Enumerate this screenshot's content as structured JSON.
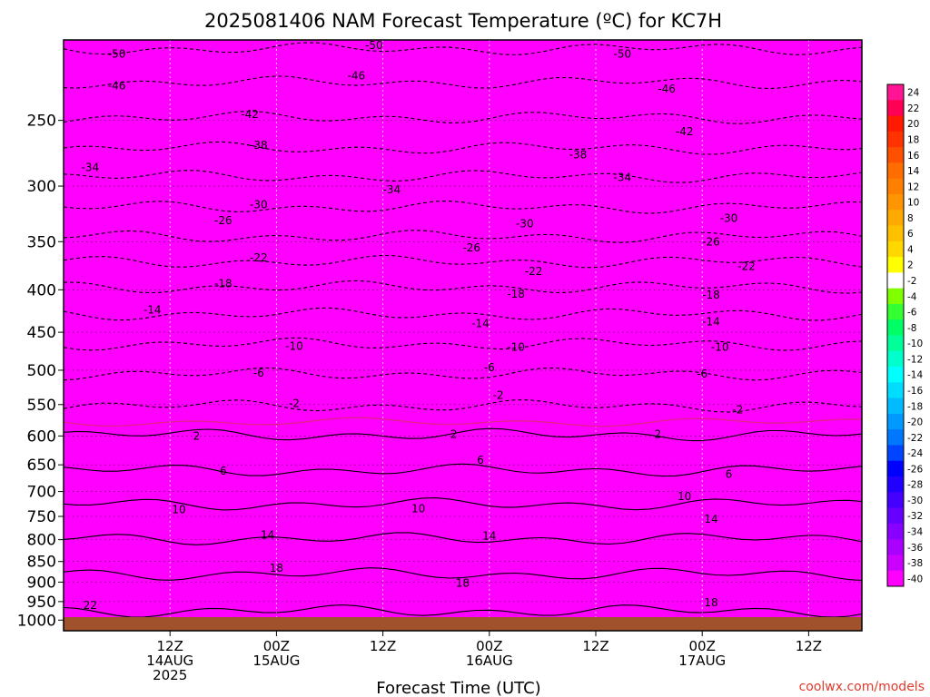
{
  "chart_data": {
    "type": "heatmap",
    "title": "2025081406 NAM Forecast Temperature (ºC) for KC7H",
    "xlabel": "Forecast Time (UTC)",
    "ylabel": "",
    "watermark": "coolwx.com/models",
    "y_axis": {
      "scale": "log",
      "units": "hPa",
      "range": [
        1030,
        200
      ],
      "ticks": [
        250,
        300,
        350,
        400,
        450,
        500,
        550,
        600,
        650,
        700,
        750,
        800,
        850,
        900,
        950,
        1000
      ]
    },
    "x_axis": {
      "range_hours": [
        -6,
        63
      ],
      "ticks": [
        {
          "hour": 6,
          "labels": [
            "12Z",
            "14AUG",
            "2025"
          ]
        },
        {
          "hour": 18,
          "labels": [
            "00Z",
            "15AUG"
          ]
        },
        {
          "hour": 30,
          "labels": [
            "12Z"
          ]
        },
        {
          "hour": 42,
          "labels": [
            "00Z",
            "16AUG"
          ]
        },
        {
          "hour": 54,
          "labels": [
            "12Z"
          ]
        },
        {
          "hour": 66,
          "labels": [
            "00Z",
            "17AUG"
          ]
        },
        {
          "hour": 78,
          "labels": [
            "12Z"
          ]
        }
      ]
    },
    "x_axis_start_hour": -6,
    "x_axis_end_hour": 84,
    "colorbar": {
      "labels": [
        "24",
        "22",
        "20",
        "18",
        "16",
        "14",
        "12",
        "10",
        "8",
        "6",
        "4",
        "2",
        "-2",
        "-4",
        "-6",
        "-8",
        "-10",
        "-12",
        "-14",
        "-16",
        "-18",
        "-20",
        "-22",
        "-24",
        "-26",
        "-28",
        "-30",
        "-32",
        "-34",
        "-36",
        "-38",
        "-40"
      ],
      "colors": [
        "#ff1493",
        "#ff0055",
        "#ff1a00",
        "#ff3300",
        "#ff5000",
        "#ff6c00",
        "#ff8000",
        "#ff9500",
        "#ffaa00",
        "#ffc000",
        "#ffd800",
        "#ffff00",
        "#ffffff",
        "#7fff00",
        "#33ff33",
        "#00ff66",
        "#00ff99",
        "#00ffcc",
        "#00ffff",
        "#00ddff",
        "#00bbff",
        "#0099ff",
        "#0077ff",
        "#0044ff",
        "#0000ff",
        "#2200ff",
        "#4400ff",
        "#6600ff",
        "#8800ff",
        "#aa00ff",
        "#cc00ff",
        "#ff00ff"
      ]
    },
    "isotherms": [
      {
        "value": -50,
        "pressure": 205
      },
      {
        "value": -46,
        "pressure": 225
      },
      {
        "value": -42,
        "pressure": 248
      },
      {
        "value": -38,
        "pressure": 270
      },
      {
        "value": -34,
        "pressure": 292
      },
      {
        "value": -30,
        "pressure": 318
      },
      {
        "value": -26,
        "pressure": 345
      },
      {
        "value": -22,
        "pressure": 370
      },
      {
        "value": -18,
        "pressure": 397
      },
      {
        "value": -14,
        "pressure": 428
      },
      {
        "value": -10,
        "pressure": 465
      },
      {
        "value": -6,
        "pressure": 505
      },
      {
        "value": -2,
        "pressure": 552
      },
      {
        "value": 2,
        "pressure": 598
      },
      {
        "value": 6,
        "pressure": 660
      },
      {
        "value": 10,
        "pressure": 725
      },
      {
        "value": 14,
        "pressure": 798
      },
      {
        "value": 18,
        "pressure": 880
      },
      {
        "value": 22,
        "pressure": 975
      }
    ],
    "contour_labels": [
      {
        "text": "-50",
        "hour": 0,
        "pressure": 208
      },
      {
        "text": "-50",
        "hour": 29,
        "pressure": 203
      },
      {
        "text": "-50",
        "hour": 57,
        "pressure": 208
      },
      {
        "text": "-46",
        "hour": 0,
        "pressure": 227
      },
      {
        "text": "-46",
        "hour": 27,
        "pressure": 221
      },
      {
        "text": "-46",
        "hour": 62,
        "pressure": 229
      },
      {
        "text": "-42",
        "hour": 15,
        "pressure": 246
      },
      {
        "text": "-42",
        "hour": 64,
        "pressure": 258
      },
      {
        "text": "-38",
        "hour": 16,
        "pressure": 268
      },
      {
        "text": "-38",
        "hour": 52,
        "pressure": 275
      },
      {
        "text": "-34",
        "hour": -3,
        "pressure": 285
      },
      {
        "text": "-34",
        "hour": 31,
        "pressure": 303
      },
      {
        "text": "-34",
        "hour": 57,
        "pressure": 293
      },
      {
        "text": "-30",
        "hour": 16,
        "pressure": 316
      },
      {
        "text": "-30",
        "hour": 46,
        "pressure": 333
      },
      {
        "text": "-30",
        "hour": 69,
        "pressure": 328
      },
      {
        "text": "-26",
        "hour": 12,
        "pressure": 330
      },
      {
        "text": "-26",
        "hour": 40,
        "pressure": 356
      },
      {
        "text": "-26",
        "hour": 67,
        "pressure": 350
      },
      {
        "text": "-22",
        "hour": 16,
        "pressure": 366
      },
      {
        "text": "-22",
        "hour": 47,
        "pressure": 380
      },
      {
        "text": "-22",
        "hour": 71,
        "pressure": 375
      },
      {
        "text": "-18",
        "hour": 12,
        "pressure": 393
      },
      {
        "text": "-18",
        "hour": 45,
        "pressure": 405
      },
      {
        "text": "-18",
        "hour": 67,
        "pressure": 406
      },
      {
        "text": "-14",
        "hour": 4,
        "pressure": 423
      },
      {
        "text": "-14",
        "hour": 41,
        "pressure": 439
      },
      {
        "text": "-14",
        "hour": 67,
        "pressure": 437
      },
      {
        "text": "-10",
        "hour": 20,
        "pressure": 468
      },
      {
        "text": "-10",
        "hour": 45,
        "pressure": 469
      },
      {
        "text": "-10",
        "hour": 68,
        "pressure": 469
      },
      {
        "text": "-6",
        "hour": 16,
        "pressure": 504
      },
      {
        "text": "-6",
        "hour": 42,
        "pressure": 496
      },
      {
        "text": "-6",
        "hour": 66,
        "pressure": 505
      },
      {
        "text": "-2",
        "hour": 20,
        "pressure": 548
      },
      {
        "text": "-2",
        "hour": 43,
        "pressure": 536
      },
      {
        "text": "-2",
        "hour": 70,
        "pressure": 558
      },
      {
        "text": "2",
        "hour": 9,
        "pressure": 600
      },
      {
        "text": "2",
        "hour": 38,
        "pressure": 597
      },
      {
        "text": "2",
        "hour": 61,
        "pressure": 597
      },
      {
        "text": "6",
        "hour": 12,
        "pressure": 661
      },
      {
        "text": "6",
        "hour": 41,
        "pressure": 642
      },
      {
        "text": "6",
        "hour": 69,
        "pressure": 667
      },
      {
        "text": "10",
        "hour": 7,
        "pressure": 736
      },
      {
        "text": "10",
        "hour": 34,
        "pressure": 734
      },
      {
        "text": "10",
        "hour": 64,
        "pressure": 710
      },
      {
        "text": "14",
        "hour": 17,
        "pressure": 790
      },
      {
        "text": "14",
        "hour": 42,
        "pressure": 792
      },
      {
        "text": "14",
        "hour": 67,
        "pressure": 756
      },
      {
        "text": "18",
        "hour": 18,
        "pressure": 866
      },
      {
        "text": "18",
        "hour": 39,
        "pressure": 903
      },
      {
        "text": "18",
        "hour": 67,
        "pressure": 953
      },
      {
        "text": "22",
        "hour": -3,
        "pressure": 960
      },
      {
        "text": "22",
        "hour": 32,
        "pressure": 1013
      }
    ]
  }
}
